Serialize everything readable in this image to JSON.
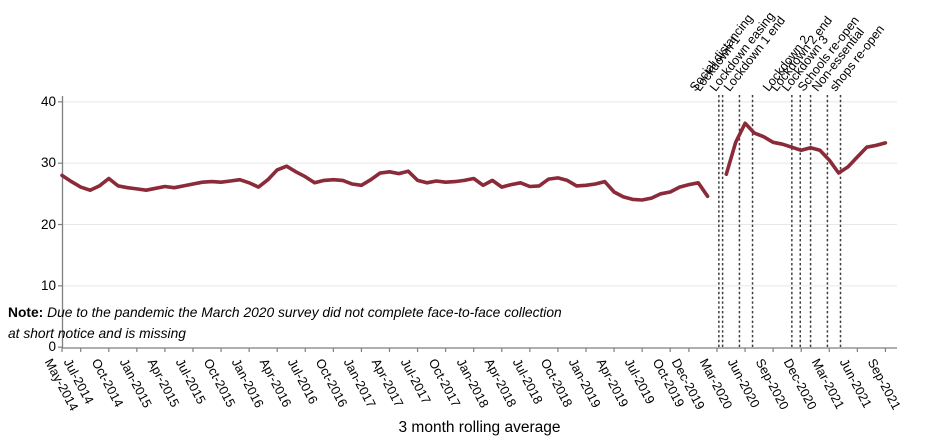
{
  "note": {
    "bold": "Note:",
    "line1": "Due to the pandemic the March 2020 survey did not complete face-to-face collection",
    "line2": "at short notice and is missing"
  },
  "chart_data": {
    "type": "line",
    "title": "",
    "xlabel": "3 month rolling average",
    "ylabel": "",
    "ylim": [
      0,
      40
    ],
    "grid": "horizontal",
    "legend": "none",
    "line_color": "#8b2a38",
    "axis_color": "#7f7f7f",
    "grid_color": "#e8e8e8",
    "annotation_line_color": "#3d3d3d",
    "x_start_month": "May-2014",
    "x_end_month": "Sep-2021",
    "missing_month": "Mar-2020",
    "y_ticks": [
      0,
      10,
      20,
      30,
      40
    ],
    "x_ticks": [
      {
        "label": "May-2014",
        "m": 0
      },
      {
        "label": "Jul-2014",
        "m": 2
      },
      {
        "label": "Oct-2014",
        "m": 5
      },
      {
        "label": "Jan-2015",
        "m": 8
      },
      {
        "label": "Apr-2015",
        "m": 11
      },
      {
        "label": "Jul-2015",
        "m": 14
      },
      {
        "label": "Oct-2015",
        "m": 17
      },
      {
        "label": "Jan-2016",
        "m": 20
      },
      {
        "label": "Apr-2016",
        "m": 23
      },
      {
        "label": "Jul-2016",
        "m": 26
      },
      {
        "label": "Oct-2016",
        "m": 29
      },
      {
        "label": "Jan-2017",
        "m": 32
      },
      {
        "label": "Apr-2017",
        "m": 35
      },
      {
        "label": "Jul-2017",
        "m": 38
      },
      {
        "label": "Oct-2017",
        "m": 41
      },
      {
        "label": "Jan-2018",
        "m": 44
      },
      {
        "label": "Apr-2018",
        "m": 47
      },
      {
        "label": "Jul-2018",
        "m": 50
      },
      {
        "label": "Oct-2018",
        "m": 53
      },
      {
        "label": "Jan-2019",
        "m": 56
      },
      {
        "label": "Apr-2019",
        "m": 59
      },
      {
        "label": "Jul-2019",
        "m": 62
      },
      {
        "label": "Oct-2019",
        "m": 65
      },
      {
        "label": "Dec-2019",
        "m": 67
      },
      {
        "label": "Mar-2020",
        "m": 70
      },
      {
        "label": "Jun-2020",
        "m": 73
      },
      {
        "label": "Sep-2020",
        "m": 76
      },
      {
        "label": "Dec-2020",
        "m": 79
      },
      {
        "label": "Mar-2021",
        "m": 82
      },
      {
        "label": "Jun-2021",
        "m": 85
      },
      {
        "label": "Sep-2021",
        "m": 88
      }
    ],
    "series": [
      {
        "name": "3 month rolling average (May-2014 to Feb-2020)",
        "start_m": 0,
        "values": [
          28.0,
          27.0,
          26.1,
          25.6,
          26.3,
          27.5,
          26.3,
          26.0,
          25.8,
          25.6,
          25.9,
          26.2,
          26.0,
          26.3,
          26.6,
          26.9,
          27.0,
          26.9,
          27.1,
          27.3,
          26.8,
          26.1,
          27.3,
          28.9,
          29.5,
          28.6,
          27.8,
          26.8,
          27.2,
          27.3,
          27.2,
          26.6,
          26.4,
          27.3,
          28.4,
          28.6,
          28.3,
          28.7,
          27.2,
          26.8,
          27.1,
          26.9,
          27.0,
          27.2,
          27.5,
          26.4,
          27.2,
          26.1,
          26.5,
          26.8,
          26.2,
          26.3,
          27.4,
          27.6,
          27.2,
          26.3,
          26.4,
          26.6,
          27.0,
          25.3,
          24.5,
          24.1,
          24.0,
          24.3,
          25.0,
          25.3,
          26.1,
          26.5,
          26.8,
          24.6
        ]
      },
      {
        "name": "3 month rolling average (Apr-2020 to Sep-2021)",
        "start_m": 71,
        "values": [
          28.2,
          33.4,
          36.5,
          34.9,
          34.3,
          33.4,
          33.1,
          32.6,
          32.1,
          32.5,
          32.1,
          30.5,
          28.4,
          29.4,
          31.0,
          32.6,
          32.9,
          33.3
        ]
      }
    ],
    "annotations": [
      {
        "label": "Social distancing",
        "m": 70.2
      },
      {
        "label": "Lockdown 1",
        "m": 70.6
      },
      {
        "label": "Lockdown easing",
        "m": 72.4
      },
      {
        "label": "Lockdown 1 end",
        "m": 73.8
      },
      {
        "label": "Lockdown 2",
        "m": 78.0
      },
      {
        "label": "Lockdown 2 end",
        "m": 78.9
      },
      {
        "label": "Lockdown 3",
        "m": 80.0
      },
      {
        "label": "Schools re-open",
        "m": 81.8
      },
      {
        "label": "Non-essential\nshops re-open",
        "m": 83.2
      }
    ]
  }
}
